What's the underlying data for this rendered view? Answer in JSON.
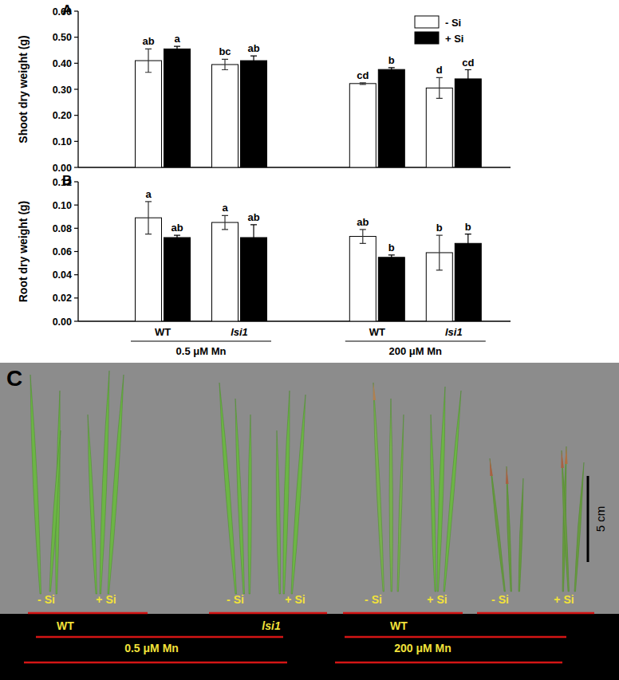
{
  "chart_data": [
    {
      "type": "bar",
      "panel": "A",
      "y_label": "Shoot dry weight (g)",
      "categories": [
        "WT",
        "lsi1",
        "WT",
        "lsi1"
      ],
      "tick_labels": "y",
      "legend": "top-right",
      "ylim": [
        0,
        0.6
      ],
      "yticks": [
        {
          "value": 0,
          "label": "0.00"
        },
        {
          "value": 0.1,
          "label": "0.10"
        },
        {
          "value": 0.2,
          "label": "0.20"
        },
        {
          "value": 0.3,
          "label": "0.30"
        },
        {
          "value": 0.4,
          "label": "0.40"
        },
        {
          "value": 0.5,
          "label": "0.50"
        },
        {
          "value": 0.6,
          "label": "0.60"
        }
      ],
      "series": [
        {
          "name": "- Si",
          "color": "#ffffff",
          "values": [
            0.41,
            0.395,
            0.322,
            0.305
          ],
          "errors": [
            0.045,
            0.02,
            0.003,
            0.04
          ],
          "letters": [
            "ab",
            "bc",
            "cd",
            "d"
          ]
        },
        {
          "name": "+ Si",
          "color": "#000000",
          "values": [
            0.455,
            0.41,
            0.376,
            0.34
          ],
          "errors": [
            0.01,
            0.018,
            0.007,
            0.035
          ],
          "letters": [
            "a",
            "ab",
            "b",
            "cd"
          ]
        }
      ]
    },
    {
      "type": "bar",
      "panel": "B",
      "y_label": "Root dry weight (g)",
      "categories": [
        "WT",
        "lsi1",
        "WT",
        "lsi1"
      ],
      "groups": [
        "0.5 μM Mn",
        "200 μM Mn"
      ],
      "ylim": [
        0,
        0.12
      ],
      "yticks": [
        {
          "value": 0,
          "label": "0.00"
        },
        {
          "value": 0.02,
          "label": "0.02"
        },
        {
          "value": 0.04,
          "label": "0.04"
        },
        {
          "value": 0.06,
          "label": "0.06"
        },
        {
          "value": 0.08,
          "label": "0.08"
        },
        {
          "value": 0.1,
          "label": "0.10"
        },
        {
          "value": 0.12,
          "label": "0.12"
        }
      ],
      "series": [
        {
          "name": "- Si",
          "color": "#ffffff",
          "values": [
            0.089,
            0.085,
            0.073,
            0.059
          ],
          "errors": [
            0.014,
            0.006,
            0.006,
            0.015
          ],
          "letters": [
            "a",
            "a",
            "ab",
            "b"
          ]
        },
        {
          "name": "+ Si",
          "color": "#000000",
          "values": [
            0.072,
            0.072,
            0.055,
            0.067
          ],
          "errors": [
            0.002,
            0.011,
            0.002,
            0.008
          ],
          "letters": [
            "ab",
            "ab",
            "b",
            "b"
          ]
        }
      ]
    }
  ],
  "photo": {
    "panel": "C",
    "scale_bar": "5 cm",
    "sample_labels": [
      "- Si",
      "+ Si",
      "- Si",
      "+ Si",
      "- Si",
      "+ Si",
      "- Si",
      "+ Si"
    ],
    "genotype_labels": [
      "WT",
      "lsi1",
      "WT"
    ],
    "mn_labels": [
      "0.5 μM Mn",
      "200 μM Mn"
    ]
  }
}
